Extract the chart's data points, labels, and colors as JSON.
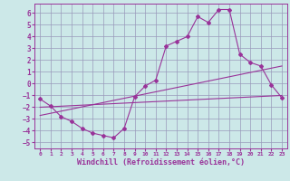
{
  "background_color": "#cce8e8",
  "grid_color": "#9999bb",
  "line_color": "#993399",
  "xlabel": "Windchill (Refroidissement éolien,°C)",
  "xlim": [
    -0.5,
    23.5
  ],
  "ylim": [
    -5.5,
    6.8
  ],
  "yticks": [
    -5,
    -4,
    -3,
    -2,
    -1,
    0,
    1,
    2,
    3,
    4,
    5,
    6
  ],
  "xticks": [
    0,
    1,
    2,
    3,
    4,
    5,
    6,
    7,
    8,
    9,
    10,
    11,
    12,
    13,
    14,
    15,
    16,
    17,
    18,
    19,
    20,
    21,
    22,
    23
  ],
  "line1_x": [
    0,
    1,
    2,
    3,
    4,
    5,
    6,
    7,
    8,
    9,
    10,
    11,
    12,
    13,
    14,
    15,
    16,
    17,
    18,
    19,
    20,
    21,
    22,
    23
  ],
  "line1_y": [
    -1.3,
    -1.9,
    -2.8,
    -3.2,
    -3.8,
    -4.2,
    -4.4,
    -4.6,
    -3.8,
    -1.1,
    -0.2,
    0.3,
    3.2,
    3.6,
    4.0,
    5.7,
    5.2,
    6.3,
    6.3,
    2.5,
    1.8,
    1.5,
    -0.1,
    -1.2
  ],
  "line2_x": [
    0,
    23
  ],
  "line2_y": [
    -2.0,
    -1.0
  ],
  "line3_x": [
    0,
    23
  ],
  "line3_y": [
    -2.7,
    1.5
  ],
  "xlabel_fontsize": 6,
  "tick_fontsize_x": 4.5,
  "tick_fontsize_y": 5.5
}
